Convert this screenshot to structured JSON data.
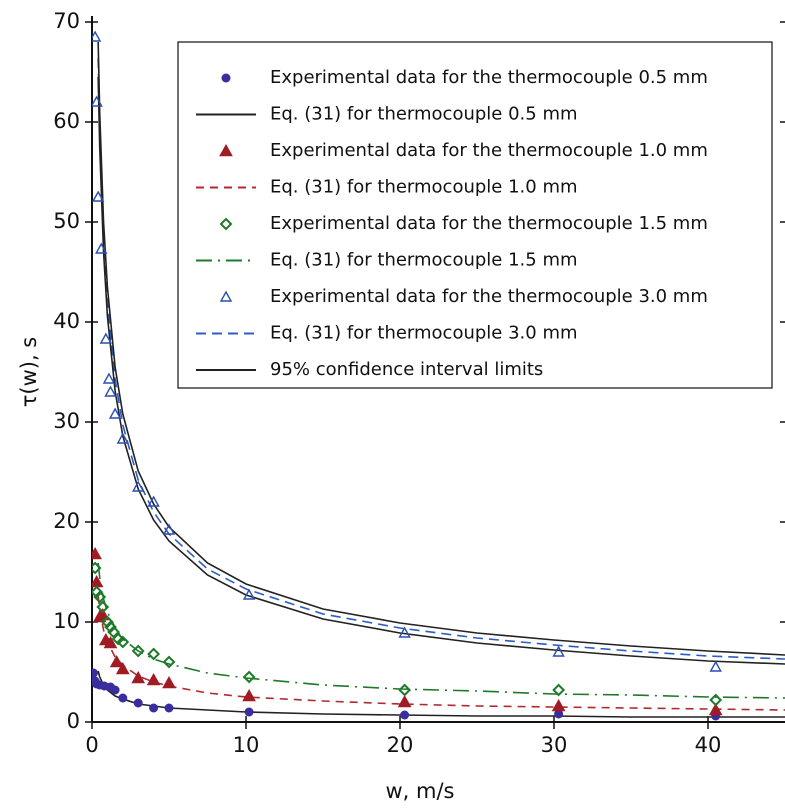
{
  "chart_data": {
    "type": "scatter",
    "x_label": "w, m/s",
    "y_label": "τ(w), s",
    "xlim": [
      0,
      45
    ],
    "ylim": [
      0,
      70
    ],
    "xticks": [
      0,
      10,
      20,
      30,
      40
    ],
    "yticks": [
      0,
      10,
      20,
      30,
      40,
      50,
      60,
      70
    ],
    "series": [
      {
        "name": "Experimental data for the thermocouple 0.5 mm",
        "kind": "points",
        "marker": "circle",
        "color": "#3a2e9e",
        "x": [
          0.1,
          0.2,
          0.3,
          0.5,
          0.8,
          1.2,
          1.5,
          2,
          3,
          4,
          5,
          10.2,
          20.3,
          30.3,
          40.5
        ],
        "values": [
          4.9,
          4.1,
          3.8,
          3.7,
          3.6,
          3.5,
          3.2,
          2.4,
          1.9,
          1.4,
          1.4,
          1,
          0.7,
          0.8,
          0.6
        ]
      },
      {
        "name": "Eq. (31) for thermocouple 0.5 mm",
        "kind": "curve",
        "dash": "none",
        "color": "#222222",
        "x": [
          0.4,
          0.5,
          0.75,
          1,
          1.5,
          2,
          3,
          4,
          5,
          7.5,
          10,
          15,
          20,
          25,
          30,
          35,
          40,
          45
        ],
        "values": [
          5.1,
          4.5,
          3.7,
          3.2,
          2.6,
          2.3,
          1.8,
          1.6,
          1.4,
          1.2,
          1.0,
          0.8,
          0.7,
          0.6,
          0.6,
          0.5,
          0.5,
          0.5
        ]
      },
      {
        "name": "Experimental data for the thermocouple 1.0 mm",
        "kind": "points",
        "marker": "triangle",
        "color": "#a01c24",
        "x": [
          0.2,
          0.3,
          0.5,
          0.7,
          0.9,
          1.2,
          1.6,
          2,
          3,
          4,
          5,
          10.2,
          20.3,
          30.3,
          40.5
        ],
        "values": [
          16.8,
          14,
          10.5,
          10.7,
          8.2,
          7.9,
          6,
          5.3,
          4.4,
          4.2,
          3.9,
          2.6,
          2,
          1.6,
          1.2
        ]
      },
      {
        "name": "Eq. (31) for thermocouple 1.0 mm",
        "kind": "curve",
        "dash": "8 6",
        "color": "#b02a30",
        "x": [
          0.4,
          0.5,
          0.75,
          1,
          1.5,
          2,
          3,
          4,
          5,
          7.5,
          10,
          15,
          20,
          25,
          30,
          35,
          40,
          45
        ],
        "values": [
          12.6,
          11.3,
          9.2,
          8,
          6.5,
          5.7,
          4.6,
          4,
          3.6,
          2.9,
          2.5,
          2.1,
          1.8,
          1.6,
          1.5,
          1.4,
          1.3,
          1.2
        ]
      },
      {
        "name": "Experimental data for the thermocouple 1.5 mm",
        "kind": "points",
        "marker": "diamond",
        "color": "#1e7a2a",
        "x": [
          0.2,
          0.3,
          0.5,
          0.7,
          1,
          1.2,
          1.4,
          1.7,
          2,
          3,
          4,
          5,
          10.2,
          20.3,
          30.3,
          40.5
        ],
        "values": [
          15.4,
          13,
          12.5,
          11.5,
          10,
          9.5,
          9,
          8.3,
          8,
          7.1,
          6.8,
          6,
          4.5,
          3.2,
          3.2,
          2.2
        ]
      },
      {
        "name": "Eq. (31) for thermocouple 1.5 mm",
        "kind": "curve",
        "dash": "16 6 2 6",
        "color": "#1e7a2a",
        "x": [
          0.4,
          0.5,
          0.75,
          1,
          1.5,
          2,
          3,
          4,
          5,
          7.5,
          10,
          15,
          20,
          25,
          30,
          35,
          40,
          45
        ],
        "values": [
          15.9,
          14.5,
          12.3,
          11,
          9.4,
          8.3,
          7.1,
          6.3,
          5.8,
          4.9,
          4.4,
          3.7,
          3.3,
          3.1,
          2.8,
          2.7,
          2.5,
          2.4
        ]
      },
      {
        "name": "Experimental data for the thermocouple 3.0 mm",
        "kind": "points",
        "marker": "triangle-open",
        "color": "#2a4fb0",
        "x": [
          0.2,
          0.3,
          0.4,
          0.6,
          0.9,
          1.1,
          1.2,
          1.5,
          2,
          3,
          4,
          5,
          10.2,
          20.3,
          30.3,
          40.5
        ],
        "values": [
          68.5,
          62,
          52.5,
          47.3,
          38.3,
          34.3,
          33,
          30.8,
          28.3,
          23.5,
          22,
          19.2,
          12.7,
          8.9,
          7,
          5.5
        ]
      },
      {
        "name": "Eq. (31) for thermocouple 3.0 mm",
        "kind": "curve",
        "dash": "10 6",
        "color": "#2c5cc5",
        "x": [
          0.4,
          0.5,
          0.75,
          1,
          1.5,
          2,
          3,
          4,
          5,
          7.5,
          10,
          15,
          20,
          25,
          30,
          35,
          40,
          45
        ],
        "values": [
          66.4,
          59.4,
          48.5,
          42,
          34.3,
          29.7,
          24.2,
          21,
          18.8,
          15.3,
          13.3,
          10.8,
          9.4,
          8.4,
          7.7,
          7.1,
          6.6,
          6.3
        ]
      },
      {
        "name": "95% confidence interval limits",
        "kind": "band",
        "dash": "none",
        "color": "#222222",
        "x": [
          0.4,
          0.5,
          0.75,
          1,
          1.5,
          2,
          3,
          4,
          5,
          7.5,
          10,
          15,
          20,
          25,
          30,
          35,
          40,
          45
        ],
        "upper": [
          68,
          61,
          50,
          43.5,
          35.5,
          30.8,
          25.1,
          21.8,
          19.5,
          15.9,
          13.8,
          11.3,
          9.9,
          8.9,
          8.2,
          7.6,
          7.1,
          6.7
        ],
        "lower": [
          64.5,
          57.5,
          47,
          40.6,
          33.1,
          28.6,
          23.3,
          20.2,
          18.1,
          14.7,
          12.7,
          10.3,
          8.9,
          7.9,
          7.2,
          6.6,
          6.1,
          5.8
        ]
      }
    ]
  }
}
